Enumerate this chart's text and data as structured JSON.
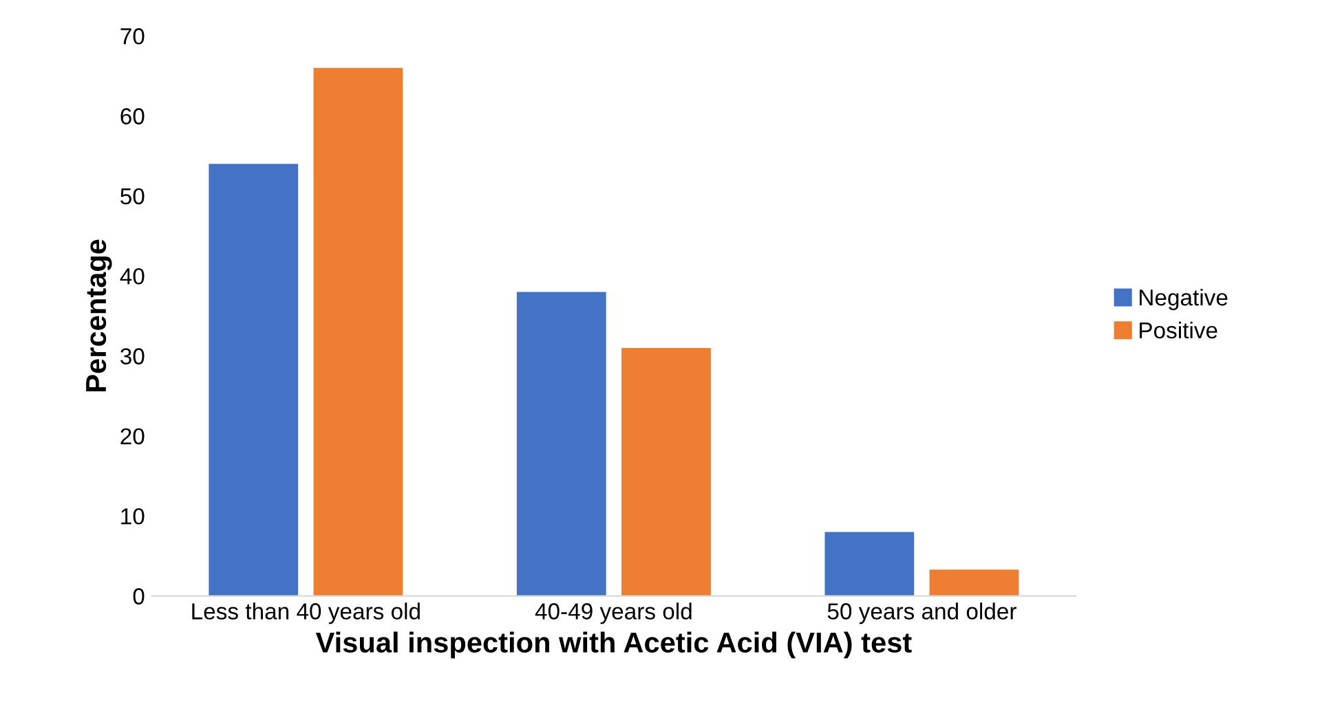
{
  "chart_data": {
    "type": "bar",
    "xlabel": "Visual inspection with Acetic Acid (VIA) test",
    "ylabel": "Percentage",
    "categories": [
      "Less than 40 years old",
      "40-49 years old",
      "50 years and older"
    ],
    "series": [
      {
        "name": "Negative",
        "color": "#4472c4",
        "values": [
          54,
          38,
          8
        ]
      },
      {
        "name": "Positive",
        "color": "#ed7d31",
        "values": [
          66,
          31,
          3.3
        ]
      }
    ],
    "ylim": [
      0,
      70
    ],
    "yticks": [
      0,
      10,
      20,
      30,
      40,
      50,
      60,
      70
    ],
    "grid": false,
    "legend": "right"
  }
}
